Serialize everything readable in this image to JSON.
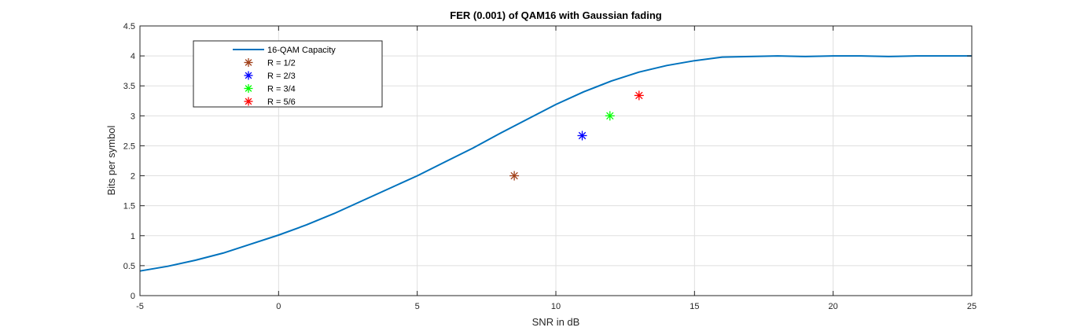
{
  "chart_data": {
    "type": "line",
    "title": "FER (0.001) of QAM16 with Gaussian fading",
    "xlabel": "SNR in dB",
    "ylabel": "Bits per symbol",
    "xlim": [
      -5,
      25
    ],
    "ylim": [
      0,
      4.5
    ],
    "xticks": [
      -5,
      0,
      5,
      10,
      15,
      20,
      25
    ],
    "yticks": [
      0,
      0.5,
      1,
      1.5,
      2,
      2.5,
      3,
      3.5,
      4,
      4.5
    ],
    "xtick_labels": [
      "-5",
      "0",
      "5",
      "10",
      "15",
      "20",
      "25"
    ],
    "ytick_labels": [
      "0",
      "0.5",
      "1",
      "1.5",
      "2",
      "2.5",
      "3",
      "3.5",
      "4",
      "4.5"
    ],
    "grid": true,
    "legend_position": "top-left",
    "series": [
      {
        "name": "16-QAM Capacity",
        "kind": "line",
        "color": "#0072bd",
        "x": [
          -5,
          -4,
          -3,
          -2,
          -1,
          0,
          1,
          2,
          3,
          4,
          5,
          6,
          7,
          8,
          9,
          10,
          11,
          12,
          13,
          14,
          15,
          16,
          17,
          18,
          19,
          20,
          21,
          22,
          23,
          24,
          25
        ],
        "y": [
          0.41,
          0.49,
          0.59,
          0.71,
          0.86,
          1.01,
          1.18,
          1.37,
          1.58,
          1.79,
          2.0,
          2.23,
          2.46,
          2.71,
          2.95,
          3.19,
          3.4,
          3.58,
          3.73,
          3.84,
          3.92,
          3.98,
          3.99,
          4.0,
          3.99,
          4.0,
          4.0,
          3.99,
          4.0,
          4.0,
          4.0
        ]
      },
      {
        "name": "R = 1/2",
        "kind": "marker",
        "marker": "asterisk",
        "color": "#a0401a",
        "x": [
          8.5
        ],
        "y": [
          2.0
        ]
      },
      {
        "name": "R = 2/3",
        "kind": "marker",
        "marker": "asterisk",
        "color": "#0000ff",
        "x": [
          10.95
        ],
        "y": [
          2.67
        ]
      },
      {
        "name": "R = 3/4",
        "kind": "marker",
        "marker": "asterisk",
        "color": "#00ff00",
        "x": [
          11.95
        ],
        "y": [
          3.0
        ]
      },
      {
        "name": "R = 5/6",
        "kind": "marker",
        "marker": "asterisk",
        "color": "#ff0000",
        "x": [
          13.0
        ],
        "y": [
          3.34
        ]
      }
    ]
  }
}
